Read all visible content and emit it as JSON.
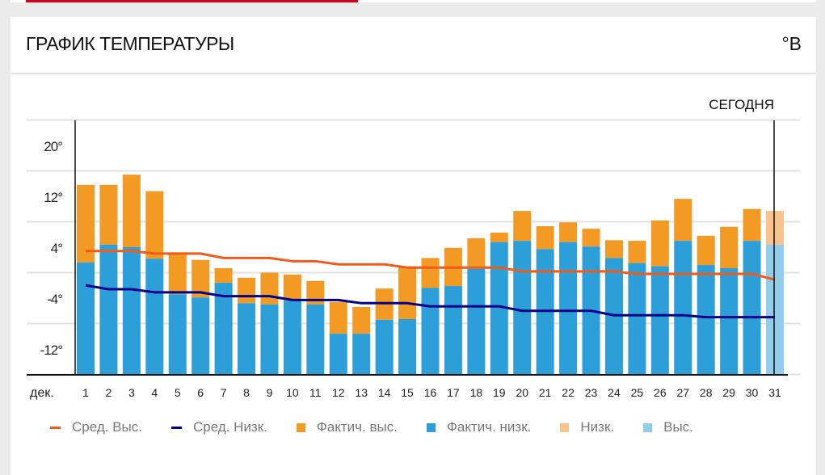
{
  "header": {
    "title": "ГРАФИК ТЕМПЕРАТУРЫ",
    "unit_toggle": "°В"
  },
  "chart_data": {
    "type": "bar",
    "title": "ГРАФИК ТЕМПЕРАТУРЫ",
    "xlabel": "дек.",
    "ylabel": "",
    "ylim": [
      -16,
      24
    ],
    "yticks": [
      24,
      16,
      8,
      0,
      -8,
      -16
    ],
    "ytick_labels": [
      "20°",
      "12°",
      "4°",
      "-4°",
      "-12°"
    ],
    "ytick_label_values": [
      20,
      12,
      4,
      -4,
      -12
    ],
    "grid": true,
    "today_label": "СЕГОДНЯ",
    "today_day": 31,
    "categories": [
      "1",
      "2",
      "3",
      "4",
      "5",
      "6",
      "7",
      "8",
      "9",
      "10",
      "11",
      "12",
      "13",
      "14",
      "15",
      "16",
      "17",
      "18",
      "19",
      "20",
      "21",
      "22",
      "23",
      "24",
      "25",
      "26",
      "27",
      "28",
      "29",
      "30",
      "31"
    ],
    "series": [
      {
        "name": "Фактич. выс.",
        "color": "#f39a25",
        "values": [
          13.8,
          13.8,
          15.4,
          12.8,
          3.0,
          2.0,
          0.7,
          -0.8,
          0,
          -0.3,
          -1.3,
          -4.6,
          -5.4,
          -2.5,
          1.0,
          2.3,
          3.9,
          5.4,
          6.3,
          9.7,
          7.3,
          7.9,
          6.9,
          5.1,
          5.0,
          8.2,
          11.6,
          5.8,
          7.2,
          10.0,
          null
        ]
      },
      {
        "name": "Фактич. низк.",
        "color": "#2d9fd8",
        "values": [
          1.6,
          4.4,
          4.0,
          2.2,
          -3.4,
          -3.9,
          -1.6,
          -4.8,
          -5.0,
          -4.4,
          -5.0,
          -9.6,
          -9.6,
          -7.4,
          -7.3,
          -2.4,
          -2.1,
          0.6,
          4.8,
          5.0,
          3.7,
          4.8,
          4.1,
          2.3,
          1.5,
          1.0,
          5.0,
          1.2,
          0.7,
          5.0,
          null
        ]
      },
      {
        "name": "Низк.",
        "color": "#f8c48c",
        "values": [
          null,
          null,
          null,
          null,
          null,
          null,
          null,
          null,
          null,
          null,
          null,
          null,
          null,
          null,
          null,
          null,
          null,
          null,
          null,
          null,
          null,
          null,
          null,
          null,
          null,
          null,
          null,
          null,
          null,
          null,
          9.7
        ]
      },
      {
        "name": "Выс.",
        "color": "#93cdec",
        "values": [
          null,
          null,
          null,
          null,
          null,
          null,
          null,
          null,
          null,
          null,
          null,
          null,
          null,
          null,
          null,
          null,
          null,
          null,
          null,
          null,
          null,
          null,
          null,
          null,
          null,
          null,
          null,
          null,
          null,
          null,
          4.4
        ]
      },
      {
        "name": "Сред. Выс.",
        "color": "#f05a1a",
        "type": "line",
        "values": [
          3.4,
          3.4,
          3.4,
          3.0,
          3.0,
          3.0,
          2.3,
          2.3,
          2.3,
          1.8,
          1.8,
          1.3,
          1.3,
          1.3,
          0.8,
          0.8,
          0.8,
          0.8,
          0.8,
          0.2,
          0.2,
          0.2,
          0.2,
          0.2,
          -0.2,
          -0.2,
          -0.2,
          -0.2,
          -0.2,
          -0.2,
          -1.1
        ]
      },
      {
        "name": "Сред. Низк.",
        "color": "#00008b",
        "type": "line",
        "values": [
          -2.0,
          -2.6,
          -2.6,
          -3.1,
          -3.1,
          -3.1,
          -3.7,
          -3.7,
          -3.7,
          -4.3,
          -4.3,
          -4.3,
          -4.8,
          -4.8,
          -4.8,
          -5.3,
          -5.3,
          -5.3,
          -5.3,
          -6.0,
          -6.0,
          -6.0,
          -6.0,
          -6.7,
          -6.7,
          -6.7,
          -6.7,
          -7.0,
          -7.0,
          -7.0,
          -7.0
        ]
      }
    ],
    "legend": [
      "Сред. Выс.",
      "Сред. Низк.",
      "Фактич. выс.",
      "Фактич. низк.",
      "Низк.",
      "Выс."
    ],
    "legend_position": "bottom"
  }
}
